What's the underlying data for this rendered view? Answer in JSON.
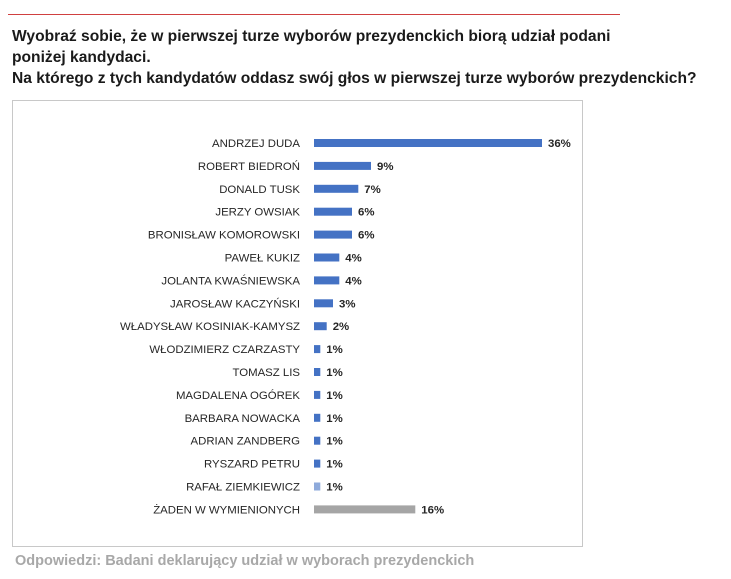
{
  "question": {
    "line1": "Wyobraź sobie, że w pierwszej turze wyborów prezydenckich biorą udział podani",
    "line2": "poniżej kandydaci.",
    "line3": "Na którego z tych kandydatów oddasz swój głos w pierwszej turze wyborów prezydenckich?"
  },
  "footnote": "Odpowiedzi: Badani deklarujący udział w wyborach prezydenckich",
  "colors": {
    "bar": "#4472c4",
    "bar_light": "#8eaadb",
    "bar_none": "#a5a5a5"
  },
  "chart_data": {
    "type": "bar",
    "orientation": "horizontal",
    "title": "",
    "xlabel": "",
    "ylabel": "",
    "xlim": [
      0,
      36
    ],
    "grid": false,
    "legend": "none",
    "value_suffix": "%",
    "categories": [
      "ANDRZEJ DUDA",
      "ROBERT BIEDROŃ",
      "DONALD TUSK",
      "JERZY OWSIAK",
      "BRONISŁAW KOMOROWSKI",
      "PAWEŁ KUKIZ",
      "JOLANTA KWAŚNIEWSKA",
      "JAROSŁAW KACZYŃSKI",
      "WŁADYSŁAW KOSINIAK-KAMYSZ",
      "WŁODZIMIERZ CZARZASTY",
      "TOMASZ LIS",
      "MAGDALENA OGÓREK",
      "BARBARA NOWACKA",
      "ADRIAN ZANDBERG",
      "RYSZARD PETRU",
      "RAFAŁ ZIEMKIEWICZ",
      "ŻADEN W WYMIENIONYCH"
    ],
    "values": [
      36,
      9,
      7,
      6,
      6,
      4,
      4,
      3,
      2,
      1,
      1,
      1,
      1,
      1,
      1,
      1,
      16
    ],
    "value_labels": [
      "36%",
      "9%",
      "7%",
      "6%",
      "6%",
      "4%",
      "4%",
      "3%",
      "2%",
      "1%",
      "1%",
      "1%",
      "1%",
      "1%",
      "1%",
      "1%",
      "16%"
    ],
    "bar_colors": [
      "bar",
      "bar",
      "bar",
      "bar",
      "bar",
      "bar",
      "bar",
      "bar",
      "bar",
      "bar",
      "bar",
      "bar",
      "bar",
      "bar",
      "bar",
      "bar_light",
      "bar_none"
    ]
  }
}
